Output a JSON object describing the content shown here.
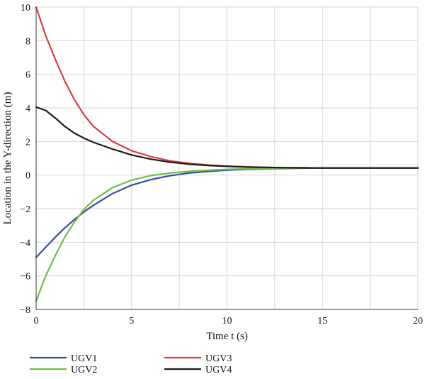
{
  "chart_data": {
    "type": "line",
    "title": "",
    "xlabel": "Time t (s)",
    "ylabel": "Location in the Y-direction (m)",
    "xlim": [
      0,
      20
    ],
    "ylim": [
      -8,
      10
    ],
    "xticks": [
      0,
      5,
      10,
      15,
      20
    ],
    "yticks": [
      -8,
      -6,
      -4,
      -2,
      0,
      2,
      4,
      6,
      8,
      10
    ],
    "grid": true,
    "legend_position": "bottom",
    "series": [
      {
        "name": "UGV1",
        "color": "#3a4aa8",
        "x": [
          0,
          0.5,
          1,
          1.5,
          2,
          2.5,
          3,
          4,
          5,
          6,
          7,
          8,
          9,
          10,
          11,
          12,
          13,
          14,
          15,
          16,
          17,
          18,
          19,
          20
        ],
        "y": [
          -4.9,
          -4.3,
          -3.7,
          -3.15,
          -2.65,
          -2.2,
          -1.8,
          -1.1,
          -0.6,
          -0.27,
          -0.04,
          0.12,
          0.22,
          0.29,
          0.34,
          0.37,
          0.39,
          0.41,
          0.42,
          0.42,
          0.42,
          0.42,
          0.42,
          0.42
        ]
      },
      {
        "name": "UGV2",
        "color": "#6cc04a",
        "x": [
          0,
          0.5,
          1,
          1.5,
          2,
          2.5,
          3,
          4,
          5,
          6,
          7,
          8,
          9,
          10,
          11,
          12,
          13,
          14,
          15,
          16,
          17,
          18,
          19,
          20
        ],
        "y": [
          -7.5,
          -6.0,
          -4.8,
          -3.7,
          -2.8,
          -2.05,
          -1.5,
          -0.75,
          -0.3,
          -0.03,
          0.12,
          0.22,
          0.29,
          0.34,
          0.37,
          0.39,
          0.41,
          0.42,
          0.42,
          0.42,
          0.42,
          0.42,
          0.42,
          0.42
        ]
      },
      {
        "name": "UGV3",
        "color": "#d94040",
        "x": [
          0,
          0.5,
          1,
          1.5,
          2,
          2.5,
          3,
          4,
          5,
          6,
          7,
          8,
          9,
          10,
          11,
          12,
          13,
          14,
          15,
          16,
          17,
          18,
          19,
          20
        ],
        "y": [
          10.0,
          8.3,
          6.9,
          5.6,
          4.5,
          3.6,
          2.9,
          2.0,
          1.45,
          1.1,
          0.85,
          0.7,
          0.6,
          0.53,
          0.49,
          0.46,
          0.44,
          0.43,
          0.42,
          0.42,
          0.42,
          0.42,
          0.42,
          0.42
        ]
      },
      {
        "name": "UGV4",
        "color": "#1a1a1a",
        "x": [
          0,
          0.5,
          1,
          1.5,
          2,
          2.5,
          3,
          4,
          5,
          6,
          7,
          8,
          9,
          10,
          11,
          12,
          13,
          14,
          15,
          16,
          17,
          18,
          19,
          20
        ],
        "y": [
          4.05,
          3.85,
          3.4,
          2.9,
          2.5,
          2.2,
          1.95,
          1.55,
          1.2,
          0.95,
          0.77,
          0.65,
          0.57,
          0.52,
          0.48,
          0.46,
          0.44,
          0.43,
          0.42,
          0.42,
          0.42,
          0.42,
          0.42,
          0.42
        ]
      }
    ]
  }
}
